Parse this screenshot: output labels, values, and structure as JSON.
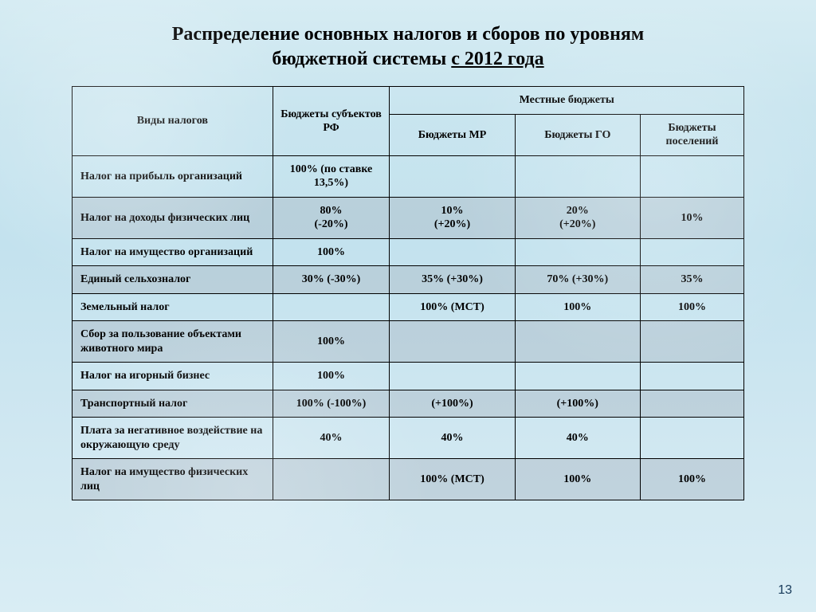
{
  "title": {
    "line1": "Распределение основных налогов и сборов по уровням",
    "line2_prefix": "бюджетной системы ",
    "line2_underlined": "с 2012 года"
  },
  "headers": {
    "tax_types": "Виды налогов",
    "subjects": "Бюджеты субъектов РФ",
    "local": "Местные бюджеты",
    "mr": "Бюджеты МР",
    "go": "Бюджеты ГО",
    "settlements": "Бюджеты поселений"
  },
  "rows": [
    {
      "shade": false,
      "label": "Налог на прибыль организаций",
      "subj": "100% (по ставке 13,5%)",
      "mr": "",
      "go": "",
      "pos": ""
    },
    {
      "shade": true,
      "label": "Налог на доходы физических лиц",
      "subj": "80%\n(-20%)",
      "mr": "10%\n(+20%)",
      "go": "20%\n(+20%)",
      "pos": "10%"
    },
    {
      "shade": false,
      "label": "Налог на имущество организаций",
      "subj": "100%",
      "mr": "",
      "go": "",
      "pos": ""
    },
    {
      "shade": true,
      "label": "Единый сельхозналог",
      "subj": "30% (-30%)",
      "mr": "35% (+30%)",
      "go": "70% (+30%)",
      "pos": "35%"
    },
    {
      "shade": false,
      "label": "Земельный налог",
      "subj": "",
      "mr": "100% (МСТ)",
      "go": "100%",
      "pos": "100%"
    },
    {
      "shade": true,
      "label": "Сбор за пользование объектами животного мира",
      "subj": "100%",
      "mr": "",
      "go": "",
      "pos": ""
    },
    {
      "shade": false,
      "label": "Налог на игорный бизнес",
      "subj": "100%",
      "mr": "",
      "go": "",
      "pos": ""
    },
    {
      "shade": true,
      "label": "Транспортный налог",
      "subj": "100% (-100%)",
      "mr": "(+100%)",
      "go": "(+100%)",
      "pos": ""
    },
    {
      "shade": false,
      "label": "Плата за негативное воздействие на окружающую среду",
      "subj": "40%",
      "mr": "40%",
      "go": "40%",
      "pos": ""
    },
    {
      "shade": true,
      "label": "Налог на имущество физических лиц",
      "subj": "",
      "mr": "100% (МСТ)",
      "go": "100%",
      "pos": "100%"
    }
  ],
  "page_number": "13",
  "style": {
    "title_fontsize": 24,
    "header_fontsize": 14,
    "cell_fontsize": 14,
    "border_color": "#000000",
    "shade_row_color": "rgba(170,185,195,0.45)",
    "background_gradient_top": "#d6ecf3",
    "background_gradient_bottom": "#d9edf4",
    "text_color": "#000000",
    "pagenum_color": "#173a5a"
  }
}
